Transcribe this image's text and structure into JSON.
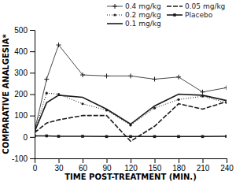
{
  "chart_data": {
    "type": "line",
    "x_label": "TIME POST-TREATMENT (MIN.)",
    "y_label": "COMPARATIVE ANALGESIA*",
    "x": [
      0,
      15,
      30,
      60,
      90,
      120,
      150,
      180,
      210,
      240
    ],
    "xlim": [
      0,
      240
    ],
    "xticks": [
      0,
      30,
      60,
      90,
      120,
      150,
      180,
      210,
      240
    ],
    "ylim": [
      -100,
      500
    ],
    "yticks": [
      -100,
      0,
      100,
      200,
      300,
      400,
      500
    ],
    "legend": "upper right",
    "series": [
      {
        "name": "0.4 mg/kg",
        "color": "#1a1a1a",
        "marker": "plus",
        "line_style": "solid",
        "values": [
          30,
          270,
          430,
          290,
          285,
          285,
          270,
          280,
          210,
          230
        ]
      },
      {
        "name": "0.2 mg/kg",
        "color": "#1a1a1a",
        "marker": "dot",
        "line_style": "dotted",
        "values": [
          25,
          205,
          200,
          155,
          125,
          55,
          135,
          175,
          190,
          160
        ]
      },
      {
        "name": "0.1 mg/kg",
        "color": "#1a1a1a",
        "marker": "none",
        "line_style": "solid",
        "values": [
          25,
          160,
          195,
          185,
          130,
          60,
          145,
          200,
          195,
          170
        ]
      },
      {
        "name": "0.05 mg/kg",
        "color": "#1a1a1a",
        "marker": "none",
        "line_style": "dashed",
        "values": [
          20,
          65,
          80,
          100,
          100,
          -20,
          50,
          155,
          130,
          165
        ]
      },
      {
        "name": "Placebo",
        "color": "#1a1a1a",
        "marker": "square",
        "line_style": "solid",
        "values": [
          5,
          5,
          3,
          3,
          2,
          2,
          2,
          2,
          2,
          3
        ]
      }
    ]
  }
}
